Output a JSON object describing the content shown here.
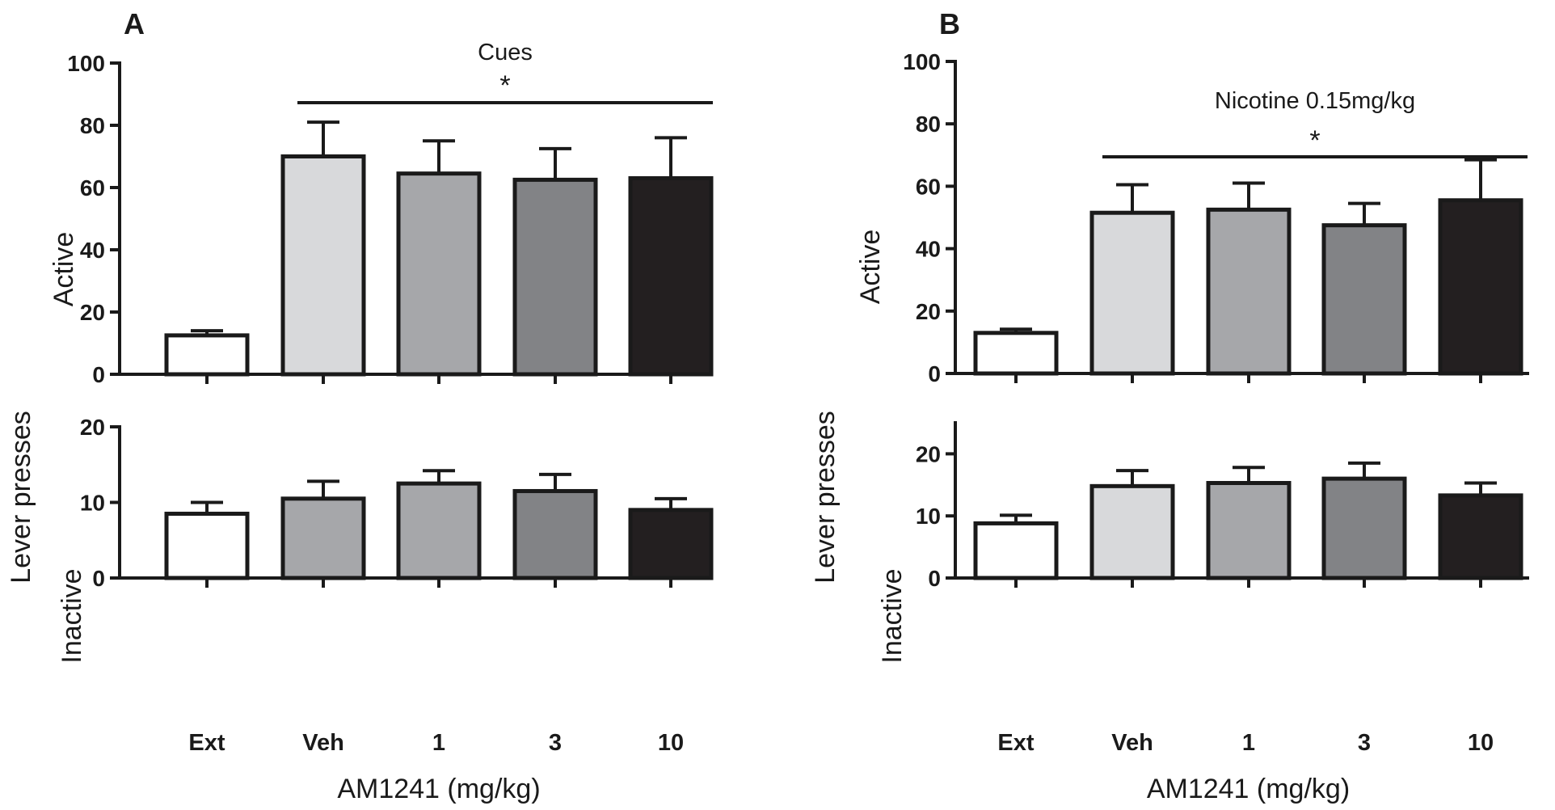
{
  "figure": {
    "x_axis_title": "AM1241 (mg/kg)",
    "y_axis_title": "Lever presses",
    "categories": [
      "Ext",
      "Veh",
      "1",
      "3",
      "10"
    ]
  },
  "colors": {
    "Ext": "#ffffff",
    "Veh": "#d8d9db",
    "1": "#a6a7aa",
    "3": "#828386",
    "10": "#231f20",
    "inactive_B_Veh": "#d8d9db",
    "outline": "#1a1a1a"
  },
  "chart_data": [
    {
      "panel": "A",
      "type": "bar",
      "subplot": "Active",
      "annotation": "Cues",
      "significance": "*",
      "categories": [
        "Ext",
        "Veh",
        "1",
        "3",
        "10"
      ],
      "values": [
        12.5,
        70,
        64.5,
        62.5,
        63
      ],
      "errors": [
        1.5,
        11,
        10.5,
        10,
        13
      ],
      "ylim": [
        0,
        100
      ],
      "yticks": [
        0,
        20,
        40,
        60,
        80,
        100
      ]
    },
    {
      "panel": "A",
      "type": "bar",
      "subplot": "Inactive",
      "categories": [
        "Ext",
        "Veh",
        "1",
        "3",
        "10"
      ],
      "values": [
        8.5,
        10.5,
        12.5,
        11.5,
        9
      ],
      "errors": [
        1.5,
        2.3,
        1.7,
        2.2,
        1.5
      ],
      "ylim": [
        0,
        20
      ],
      "yticks": [
        0,
        10,
        20
      ]
    },
    {
      "panel": "B",
      "type": "bar",
      "subplot": "Active",
      "annotation": "Nicotine 0.15mg/kg",
      "significance": "*",
      "categories": [
        "Ext",
        "Veh",
        "1",
        "3",
        "10"
      ],
      "values": [
        13,
        51.5,
        52.5,
        47.5,
        55.5
      ],
      "errors": [
        1.2,
        9,
        8.5,
        7,
        13
      ],
      "ylim": [
        0,
        100
      ],
      "yticks": [
        0,
        20,
        40,
        60,
        80,
        100
      ]
    },
    {
      "panel": "B",
      "type": "bar",
      "subplot": "Inactive",
      "categories": [
        "Ext",
        "Veh",
        "1",
        "3",
        "10"
      ],
      "values": [
        8.8,
        14.8,
        15.3,
        16,
        13.3
      ],
      "errors": [
        1.3,
        2.5,
        2.5,
        2.5,
        2
      ],
      "ylim": [
        0,
        25
      ],
      "yticks": [
        0,
        10,
        20
      ]
    }
  ]
}
